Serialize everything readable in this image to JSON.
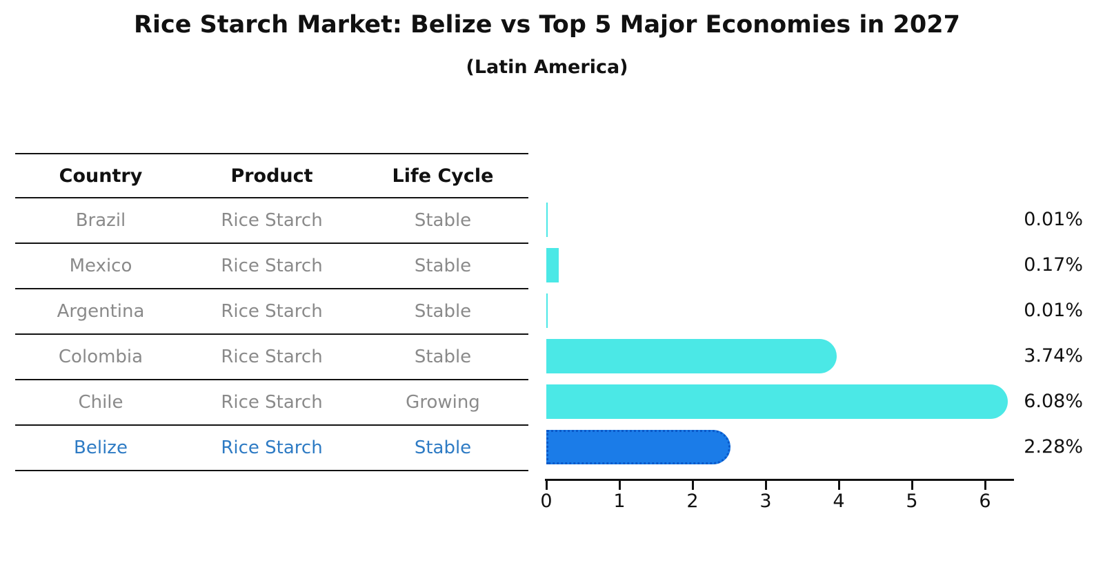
{
  "title": "Rice Starch Market: Belize vs Top 5 Major Economies in 2027",
  "subtitle": "(Latin America)",
  "table": {
    "headers": [
      "Country",
      "Product",
      "Life Cycle"
    ],
    "rows": [
      {
        "country": "Brazil",
        "product": "Rice Starch",
        "life_cycle": "Stable",
        "highlight": false
      },
      {
        "country": "Mexico",
        "product": "Rice Starch",
        "life_cycle": "Stable",
        "highlight": false
      },
      {
        "country": "Argentina",
        "product": "Rice Starch",
        "life_cycle": "Stable",
        "highlight": false
      },
      {
        "country": "Colombia",
        "product": "Rice Starch",
        "life_cycle": "Stable",
        "highlight": false
      },
      {
        "country": "Chile",
        "product": "Rice Starch",
        "life_cycle": "Growing",
        "highlight": false
      },
      {
        "country": "Belize",
        "product": "Rice Starch",
        "life_cycle": "Stable",
        "highlight": true
      }
    ]
  },
  "chart_data": {
    "type": "bar",
    "orientation": "horizontal",
    "categories": [
      "Brazil",
      "Mexico",
      "Argentina",
      "Colombia",
      "Chile",
      "Belize"
    ],
    "values": [
      0.01,
      0.17,
      0.01,
      3.74,
      6.08,
      2.28
    ],
    "value_labels": [
      "0.01%",
      "0.17%",
      "0.01%",
      "3.74%",
      "6.08%",
      "2.28%"
    ],
    "title": "Rice Starch Market: Belize vs Top 5 Major Economies in 2027",
    "subtitle": "(Latin America)",
    "xlabel": "",
    "ylabel": "",
    "xlim": [
      0,
      6.4
    ],
    "xticks": [
      0,
      1,
      2,
      3,
      4,
      5,
      6
    ],
    "grid": false,
    "legend": "none",
    "highlight_category": "Belize",
    "colors": {
      "default_bar": "#4be8e6",
      "highlight_bar": "#1b7ce8",
      "highlight_bar_border": "#0a58c8",
      "highlight_text": "#2e7bc4",
      "row_text": "#8a8a8a",
      "header_text": "#111111",
      "axis": "#111111"
    }
  }
}
